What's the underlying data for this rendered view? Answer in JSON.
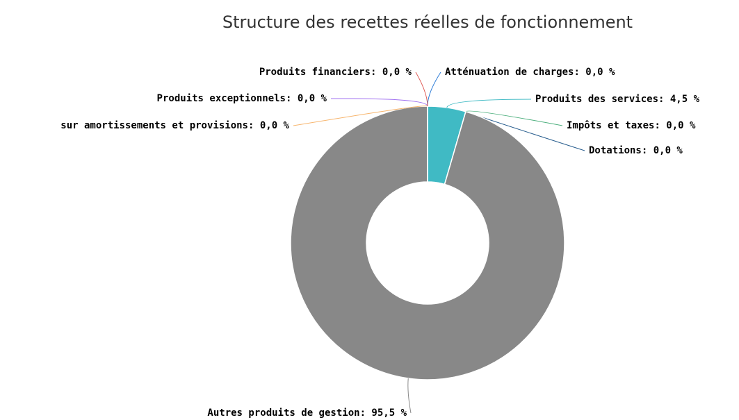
{
  "chart_data": {
    "type": "donut",
    "title": "Structure des recettes réelles de fonctionnement",
    "categories": [
      "Atténuation de charges",
      "Produits des services",
      "Impôts et taxes",
      "Dotations",
      "Autres produits de gestion",
      "sur amortissements et provisions",
      "Produits exceptionnels",
      "Produits financiers"
    ],
    "values": [
      0,
      4.5,
      0,
      0,
      95.5,
      0,
      0,
      0
    ],
    "value_labels": [
      "0,0 %",
      "4,5 %",
      "0,0 %",
      "0,0 %",
      "95,5 %",
      "0,0 %",
      "0,0 %",
      "0,0 %"
    ],
    "colors": [
      "#2f7ed8",
      "#40bac4",
      "#4caf7d",
      "#2a5f8f",
      "#888888",
      "#f7b56d",
      "#a070f0",
      "#e0605a"
    ]
  }
}
